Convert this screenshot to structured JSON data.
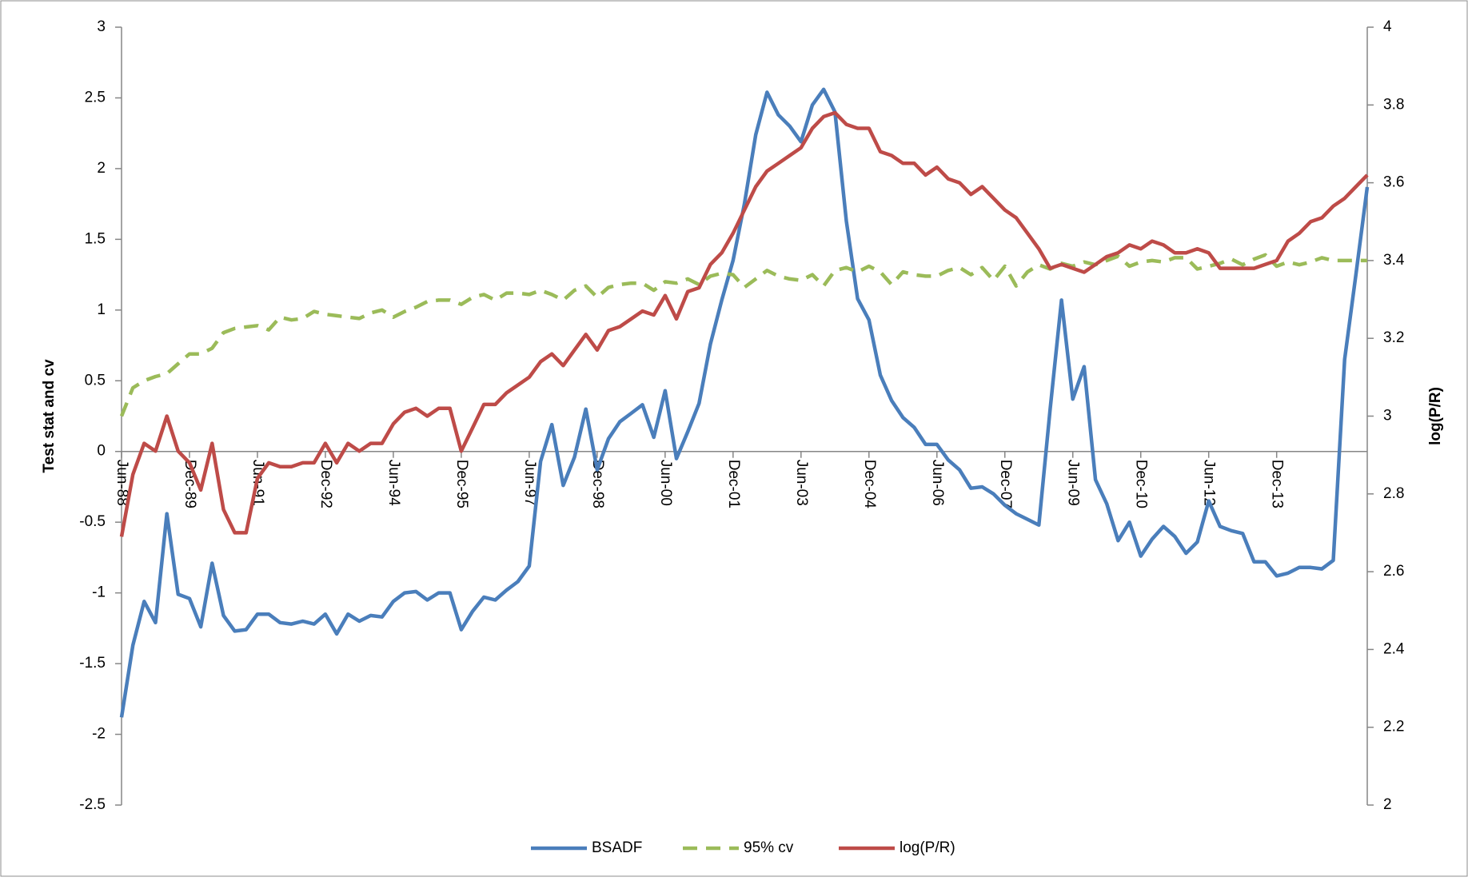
{
  "chart_data": {
    "type": "line",
    "y_label": "Test stat and cv",
    "y2_label": "log(P/R)",
    "categories": [
      "Jun-88",
      null,
      null,
      null,
      null,
      null,
      "Dec-89",
      null,
      null,
      null,
      null,
      null,
      "Jun-91",
      null,
      null,
      null,
      null,
      null,
      "Dec-92",
      null,
      null,
      null,
      null,
      null,
      "Jun-94",
      null,
      null,
      null,
      null,
      null,
      "Dec-95",
      null,
      null,
      null,
      null,
      null,
      "Jun-97",
      null,
      null,
      null,
      null,
      null,
      "Dec-98",
      null,
      null,
      null,
      null,
      null,
      "Jun-00",
      null,
      null,
      null,
      null,
      null,
      "Dec-01",
      null,
      null,
      null,
      null,
      null,
      "Jun-03",
      null,
      null,
      null,
      null,
      null,
      "Dec-04",
      null,
      null,
      null,
      null,
      null,
      "Jun-06",
      null,
      null,
      null,
      null,
      null,
      "Dec-07",
      null,
      null,
      null,
      null,
      null,
      "Jun-09",
      null,
      null,
      null,
      null,
      null,
      "Dec-10",
      null,
      null,
      null,
      null,
      null,
      "Jun-12",
      null,
      null,
      null,
      null,
      null,
      "Dec-13",
      null,
      null,
      null,
      null,
      null,
      null,
      null,
      null
    ],
    "series": [
      {
        "name": "BSADF",
        "color": "#4a7ebb",
        "dash": false,
        "values": [
          -1.88,
          -1.37,
          -1.06,
          -1.21,
          -0.44,
          -1.01,
          -1.04,
          -1.24,
          -0.79,
          -1.16,
          -1.27,
          -1.26,
          -1.15,
          -1.15,
          -1.21,
          -1.22,
          -1.2,
          -1.22,
          -1.15,
          -1.29,
          -1.15,
          -1.2,
          -1.16,
          -1.17,
          -1.06,
          -1,
          -0.99,
          -1.05,
          -1,
          -1,
          -1.26,
          -1.13,
          -1.03,
          -1.05,
          -0.98,
          -0.92,
          -0.81,
          -0.07,
          0.19,
          -0.24,
          -0.04,
          0.3,
          -0.13,
          0.09,
          0.21,
          0.27,
          0.33,
          0.1,
          0.43,
          -0.05,
          0.14,
          0.34,
          0.76,
          1.07,
          1.35,
          1.75,
          2.24,
          2.54,
          2.38,
          2.3,
          2.19,
          2.45,
          2.56,
          2.4,
          1.63,
          1.08,
          0.93,
          0.54,
          0.36,
          0.24,
          0.17,
          0.05,
          0.05,
          -0.06,
          -0.13,
          -0.26,
          -0.25,
          -0.3,
          -0.38,
          -0.44,
          -0.48,
          -0.52,
          0.3,
          1.07,
          0.37,
          0.6,
          -0.2,
          -0.37,
          -0.63,
          -0.5,
          -0.74,
          -0.62,
          -0.53,
          -0.6,
          -0.72,
          -0.64,
          -0.35,
          -0.53,
          -0.56,
          -0.58,
          -0.78,
          -0.78,
          -0.88,
          -0.86,
          -0.82,
          -0.82,
          -0.83,
          -0.77,
          0.65,
          1.25,
          1.87
        ]
      },
      {
        "name": "95% cv",
        "color": "#9bbb59",
        "dash": true,
        "values": [
          0.25,
          0.45,
          0.5,
          0.53,
          0.55,
          0.62,
          0.69,
          0.69,
          0.73,
          0.84,
          0.87,
          0.88,
          0.89,
          0.86,
          0.95,
          0.93,
          0.94,
          0.99,
          0.97,
          0.96,
          0.95,
          0.94,
          0.98,
          1,
          0.95,
          0.99,
          1.02,
          1.06,
          1.07,
          1.07,
          1.04,
          1.09,
          1.11,
          1.07,
          1.12,
          1.12,
          1.11,
          1.14,
          1.11,
          1.07,
          1.14,
          1.17,
          1.09,
          1.16,
          1.18,
          1.19,
          1.19,
          1.14,
          1.2,
          1.19,
          1.22,
          1.18,
          1.24,
          1.26,
          1.25,
          1.16,
          1.22,
          1.28,
          1.24,
          1.22,
          1.21,
          1.25,
          1.17,
          1.28,
          1.3,
          1.27,
          1.31,
          1.27,
          1.18,
          1.27,
          1.25,
          1.24,
          1.24,
          1.28,
          1.3,
          1.25,
          1.3,
          1.21,
          1.31,
          1.17,
          1.27,
          1.32,
          1.29,
          1.33,
          1.31,
          1.34,
          1.32,
          1.35,
          1.38,
          1.31,
          1.34,
          1.35,
          1.34,
          1.37,
          1.37,
          1.29,
          1.31,
          1.33,
          1.36,
          1.32,
          1.36,
          1.39,
          1.31,
          1.34,
          1.32,
          1.34,
          1.37,
          1.35,
          1.35,
          1.35,
          1.35
        ]
      },
      {
        "name": "log(P/R)",
        "color": "#be4b48",
        "dash": false,
        "axis": "y2",
        "values": [
          2.69,
          2.85,
          2.93,
          2.91,
          3,
          2.91,
          2.88,
          2.81,
          2.93,
          2.76,
          2.7,
          2.7,
          2.84,
          2.88,
          2.87,
          2.87,
          2.88,
          2.88,
          2.93,
          2.88,
          2.93,
          2.91,
          2.93,
          2.93,
          2.98,
          3.01,
          3.02,
          3,
          3.02,
          3.02,
          2.91,
          2.97,
          3.03,
          3.03,
          3.06,
          3.08,
          3.1,
          3.14,
          3.16,
          3.13,
          3.17,
          3.21,
          3.17,
          3.22,
          3.23,
          3.25,
          3.27,
          3.26,
          3.31,
          3.25,
          3.32,
          3.33,
          3.39,
          3.42,
          3.47,
          3.53,
          3.59,
          3.63,
          3.65,
          3.67,
          3.69,
          3.74,
          3.77,
          3.78,
          3.75,
          3.74,
          3.74,
          3.68,
          3.67,
          3.65,
          3.65,
          3.62,
          3.64,
          3.61,
          3.6,
          3.57,
          3.59,
          3.56,
          3.53,
          3.51,
          3.47,
          3.43,
          3.38,
          3.39,
          3.38,
          3.37,
          3.39,
          3.41,
          3.42,
          3.44,
          3.43,
          3.45,
          3.44,
          3.42,
          3.42,
          3.43,
          3.42,
          3.38,
          3.38,
          3.38,
          3.38,
          3.39,
          3.4,
          3.45,
          3.47,
          3.5,
          3.51,
          3.54,
          3.56,
          3.59,
          3.62
        ]
      }
    ],
    "ylim": [
      -2.5,
      3
    ],
    "yticks": [
      -2.5,
      -2,
      -1.5,
      -1,
      -0.5,
      0,
      0.5,
      1,
      1.5,
      2,
      2.5,
      3
    ],
    "y2lim": [
      2,
      4
    ],
    "y2ticks": [
      2,
      2.2,
      2.4,
      2.6,
      2.8,
      3,
      3.2,
      3.4,
      3.6,
      3.8,
      4
    ],
    "legend": "bottom"
  }
}
